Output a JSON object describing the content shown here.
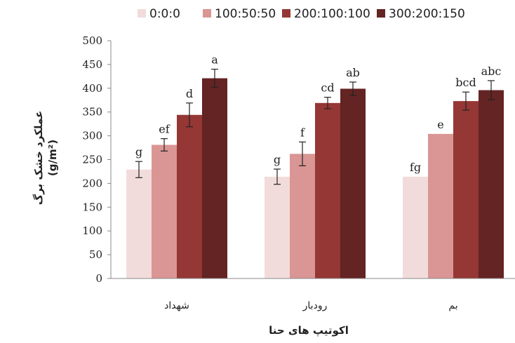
{
  "chart_data": {
    "type": "bar",
    "xlabel": "اکوتیپ های حنا",
    "ylabel": "عملکرد خشک برگ",
    "yunit": "(g/m²)",
    "ylim": [
      0,
      500
    ],
    "yticks": [
      0,
      50,
      100,
      150,
      200,
      250,
      300,
      350,
      400,
      450,
      500
    ],
    "grid": false,
    "legend_position": "top",
    "categories": [
      "شهداد",
      "رودبار",
      "بم"
    ],
    "series": [
      {
        "name": "0:0:0",
        "color": "#f2dcdb",
        "values": [
          229,
          214,
          214
        ],
        "errors": [
          17,
          16,
          0
        ],
        "letters": [
          "g",
          "g",
          "fg"
        ]
      },
      {
        "name": "100:50:50",
        "color": "#d99694",
        "values": [
          281,
          262,
          304
        ],
        "errors": [
          13,
          25,
          0
        ],
        "letters": [
          "ef",
          "f",
          "e"
        ]
      },
      {
        "name": "200:100:100",
        "color": "#953735",
        "values": [
          344,
          369,
          373
        ],
        "errors": [
          25,
          12,
          19
        ],
        "letters": [
          "d",
          "cd",
          "bcd"
        ]
      },
      {
        "name": "300:200:150",
        "color": "#632423",
        "values": [
          421,
          399,
          396
        ],
        "errors": [
          19,
          14,
          20
        ],
        "letters": [
          "a",
          "ab",
          "abc"
        ]
      }
    ]
  }
}
